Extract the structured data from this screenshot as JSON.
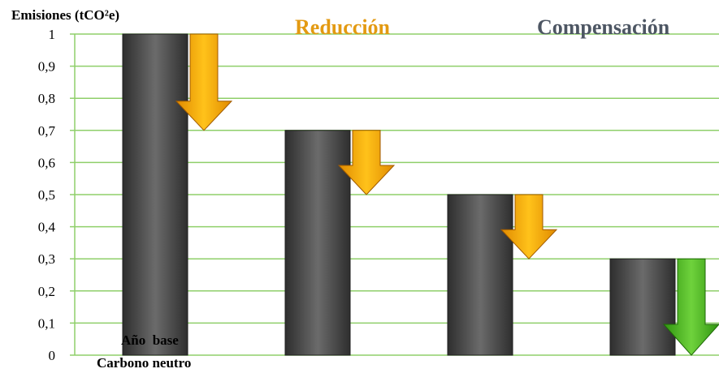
{
  "colors": {
    "bar_light": "#6b6b6b",
    "bar_dark": "#2e2e2e",
    "grid": "#8fcf6a",
    "reduction_arrow_light": "#ffc21a",
    "reduction_arrow_dark": "#e08a00",
    "compensation_arrow_light": "#6fd23c",
    "compensation_arrow_dark": "#2f9410",
    "reduction_text": "#e39a12",
    "compensation_text": "#4d5663"
  },
  "chart_data": {
    "type": "bar",
    "ylabel": "Emisiones (tCO²e)",
    "ylim": [
      0,
      1
    ],
    "yticks": [
      "0",
      "0,1",
      "0,2",
      "0,3",
      "0,4",
      "0,5",
      "0,6",
      "0,7",
      "0,8",
      "0,9",
      "1"
    ],
    "grid": true,
    "categories": [
      "Año  base",
      "",
      "",
      ""
    ],
    "category_sublabel": "Carbono neutro",
    "values": [
      1,
      0.7,
      0.5,
      0.3
    ],
    "arrows": [
      {
        "kind": "reduction",
        "from": 1.0,
        "to": 0.7
      },
      {
        "kind": "reduction",
        "from": 0.7,
        "to": 0.5
      },
      {
        "kind": "reduction",
        "from": 0.5,
        "to": 0.3
      },
      {
        "kind": "compensation",
        "from": 0.3,
        "to": 0.0
      }
    ],
    "legend": [
      {
        "label": "Reducción",
        "kind": "reduction"
      },
      {
        "label": "Compensación",
        "kind": "compensation"
      }
    ]
  }
}
